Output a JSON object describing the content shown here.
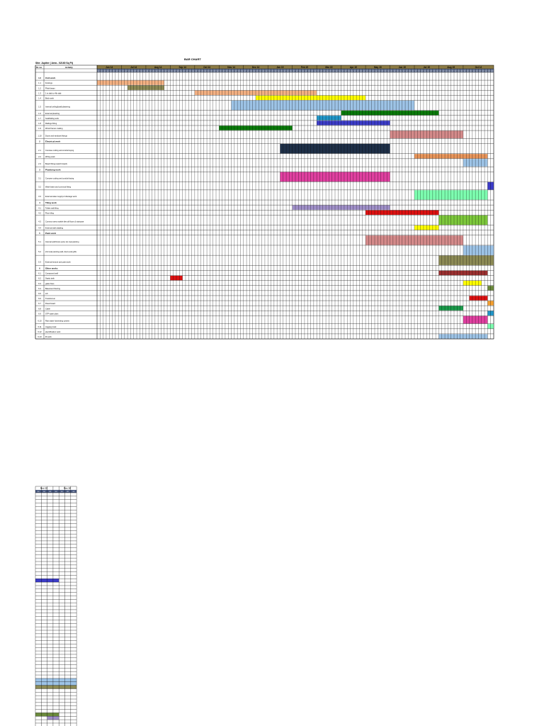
{
  "title": "BAR CHART",
  "site": "Site: Jupiter ( Area - 02160 Sq Ft)",
  "headers": {
    "sno": "Sl. no",
    "activity": "Activity"
  },
  "months": [
    "Jun 14",
    "Jul 14",
    "Aug 14",
    "Sep 14",
    "Oct 14",
    "Nov 14",
    "Dec 14",
    "Jan 15",
    "Feb 15",
    "Mar 15",
    "Apr 15",
    "May 15",
    "Jun 15",
    "Jul 15",
    "Aug 15",
    "Oct 12"
  ],
  "week_labels": [
    "W1",
    "W2",
    "W3",
    "W4"
  ],
  "rows": [
    {
      "no": "1.0",
      "label": "Civil work",
      "section": true
    },
    {
      "no": "1.1",
      "label": "Footings",
      "bars": [
        {
          "s": 0,
          "e": 22,
          "c": "#f4b183"
        }
      ]
    },
    {
      "no": "1.2",
      "label": "Plinth beam",
      "bars": [
        {
          "s": 10,
          "e": 22,
          "c": "#8c8a55"
        }
      ]
    },
    {
      "no": "1.3",
      "label": "1 st slab to 4th slab",
      "bars": [
        {
          "s": 32,
          "e": 72,
          "c": "#f4b183"
        }
      ]
    },
    {
      "no": "1.4",
      "label": "Brick work",
      "bars": [
        {
          "s": 52,
          "e": 88,
          "c": "#ffff00"
        }
      ]
    },
    {
      "no": "1.5",
      "label": "Internal ceiling&wall plastering",
      "bars": [
        {
          "s": 44,
          "e": 104,
          "c": "#9dc3e6"
        }
      ]
    },
    {
      "no": "1.6",
      "label": "External plastring",
      "bars": [
        {
          "s": 80,
          "e": 112,
          "c": "#0a7a0a"
        }
      ]
    },
    {
      "no": "1.7",
      "label": "Scaffolding work",
      "bars": [
        {
          "s": 72,
          "e": 80,
          "c": "#2196c8"
        }
      ]
    },
    {
      "no": "1.8",
      "label": "Railings fitting",
      "bars": [
        {
          "s": 72,
          "e": 96,
          "c": "#3c3cc8"
        }
      ]
    },
    {
      "no": "1.9",
      "label": "Wood frames making",
      "bars": [
        {
          "s": 40,
          "e": 64,
          "c": "#0a7a0a"
        }
      ]
    },
    {
      "no": "1.10",
      "label": "Doors and windows fittings",
      "bars": [
        {
          "s": 96,
          "e": 120,
          "c": "#d48a8a"
        }
      ]
    },
    {
      "no": "2",
      "label": "Electrical work",
      "section": true
    },
    {
      "no": "2.1",
      "label": "Concave cutting and conduit laying",
      "bars": [
        {
          "s": 60,
          "e": 96,
          "c": "#1f3048"
        }
      ]
    },
    {
      "no": "2.2",
      "label": "Wiring work",
      "bars": [
        {
          "s": 104,
          "e": 128,
          "c": "#e8955a"
        }
      ]
    },
    {
      "no": "2.3",
      "label": "Board fitting (switch board)",
      "bars": [
        {
          "s": 120,
          "e": 128,
          "c": "#9dc3e6"
        }
      ]
    },
    {
      "no": "3",
      "label": "Plumbing work",
      "section": true
    },
    {
      "no": "3.1",
      "label": "Concave cutting and conduit laying",
      "bars": [
        {
          "s": 60,
          "e": 96,
          "c": "#e040a0"
        }
      ]
    },
    {
      "no": "3.2",
      "label": "Wash basin and commod fitting",
      "bars": [
        {
          "s": 128,
          "e": 130,
          "c": "#3c3cc8"
        }
      ]
    },
    {
      "no": "3.3",
      "label": "External water supply & drainage work",
      "bars": [
        {
          "s": 104,
          "e": 128,
          "c": "#7dffb0"
        }
      ]
    },
    {
      "no": "4",
      "label": "Tiling work",
      "section": true
    },
    {
      "no": "4.1",
      "label": "Toilets wall tiling",
      "bars": [
        {
          "s": 64,
          "e": 96,
          "c": "#9f8fc8"
        }
      ]
    },
    {
      "no": "4.2",
      "label": "Floor tiling",
      "bars": [
        {
          "s": 88,
          "e": 112,
          "c": "#dd1111"
        }
      ]
    },
    {
      "no": "4.3",
      "label": "Common area marble tiles all floors & staircase",
      "bars": [
        {
          "s": 112,
          "e": 128,
          "c": "#7dc83c"
        }
      ]
    },
    {
      "no": "4.4",
      "label": "External wall cladding",
      "bars": [
        {
          "s": 104,
          "e": 112,
          "c": "#ffff00"
        }
      ]
    },
    {
      "no": "5",
      "label": "Paint work",
      "section": true
    },
    {
      "no": "5.1",
      "label": "Internal wall Doors putty 1st coat painting",
      "bars": [
        {
          "s": 88,
          "e": 120,
          "c": "#d48a8a"
        }
      ]
    },
    {
      "no": "5.2",
      "label": "2nd coat painting wall, doors and grills",
      "bars": [
        {
          "s": 120,
          "e": 130,
          "c": "#9dc3e6"
        }
      ]
    },
    {
      "no": "5.3",
      "label": "External texture and paint work",
      "bars": [
        {
          "s": 112,
          "e": 130,
          "c": "#8c8a55"
        }
      ]
    },
    {
      "no": "6",
      "label": "Other works",
      "section": true
    },
    {
      "no": "6.1",
      "label": "Compound wall",
      "bars": [
        {
          "s": 112,
          "e": 128,
          "c": "#9b3030"
        }
      ]
    },
    {
      "no": "6.2",
      "label": "Septic tank",
      "bars": [
        {
          "s": 24,
          "e": 28,
          "c": "#dd1111"
        }
      ]
    },
    {
      "no": "6.3",
      "label": "gates fixes",
      "bars": [
        {
          "s": 120,
          "e": 126,
          "c": "#ffff00"
        }
      ]
    },
    {
      "no": "6.4",
      "label": "Basement flooring",
      "bars": [
        {
          "s": 128,
          "e": 130,
          "c": "#6b8a3c"
        }
      ]
    },
    {
      "no": "6.5",
      "label": "Lift",
      "bars": []
    },
    {
      "no": "6.6",
      "label": "Transformer",
      "bars": [
        {
          "s": 122,
          "e": 128,
          "c": "#dd1111"
        }
      ]
    },
    {
      "no": "6.7",
      "label": "Panel board",
      "bars": [
        {
          "s": 128,
          "e": 130,
          "c": "#f5a030"
        }
      ]
    },
    {
      "no": "6.8",
      "label": "Cable",
      "bars": [
        {
          "s": 112,
          "e": 120,
          "c": "#1a9a4a"
        }
      ]
    },
    {
      "no": "6.9",
      "label": "STP water plant",
      "bars": [
        {
          "s": 128,
          "e": 130,
          "c": "#2196c8"
        }
      ]
    },
    {
      "no": "6.10",
      "label": "Rain water harvesting system",
      "bars": [
        {
          "s": 120,
          "e": 128,
          "c": "#e040a0"
        }
      ]
    },
    {
      "no": "6.11",
      "label": "Jogging track",
      "bars": [
        {
          "s": 128,
          "e": 130,
          "c": "#7dffb0"
        }
      ]
    },
    {
      "no": "6.12",
      "label": "electrification work",
      "bars": []
    },
    {
      "no": "6.13",
      "label": "lift work",
      "bars": [
        {
          "s": 112,
          "e": 128,
          "c": "#9dc3e6"
        }
      ]
    }
  ],
  "page2": {
    "months": [
      "Nov 12",
      "Dec 12"
    ],
    "fills": [
      {
        "row": 25,
        "s": 0,
        "e": 4,
        "c": "#3c3cc8"
      },
      {
        "row": 54,
        "s": 0,
        "e": 7,
        "c": "#9dc3e6"
      },
      {
        "row": 55,
        "s": 0,
        "e": 7,
        "c": "#9dc3e6"
      },
      {
        "row": 56,
        "s": 0,
        "e": 7,
        "c": "#8c8a55"
      },
      {
        "row": 64,
        "s": 0,
        "e": 4,
        "c": "#6b8a3c"
      },
      {
        "row": 65,
        "s": 2,
        "e": 4,
        "c": "#9f8fc8"
      }
    ]
  }
}
